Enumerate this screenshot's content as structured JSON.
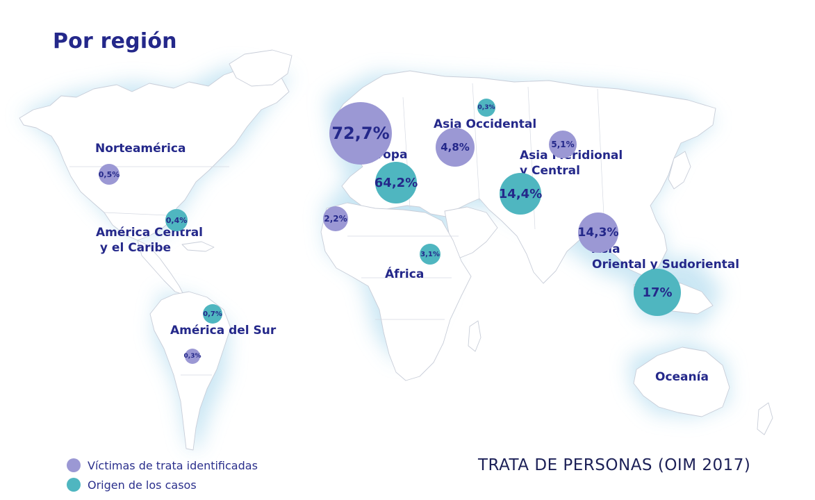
{
  "heading": "Por región",
  "footer_title": "TRATA DE PERSONAS (OIM 2017)",
  "colors": {
    "victims": "#9b98d4",
    "origin": "#4fb6c0",
    "text": "#24288a",
    "land": "#ffffff",
    "glow": "#c5e4f3"
  },
  "legend": [
    {
      "label": "Víctimas de trata identificadas",
      "color": "#9b98d4"
    },
    {
      "label": "Origen de los casos",
      "color": "#4fb6c0"
    }
  ],
  "regions": [
    {
      "id": "norteamerica",
      "lines": [
        "Norteamérica"
      ]
    },
    {
      "id": "america-central",
      "lines": [
        "América Central",
        " y el Caribe"
      ]
    },
    {
      "id": "america-sur",
      "lines": [
        "América del Sur"
      ]
    },
    {
      "id": "europa",
      "lines": [
        "Europa"
      ]
    },
    {
      "id": "asia-occidental",
      "lines": [
        "Asia Occidental"
      ]
    },
    {
      "id": "asia-meridional",
      "lines": [
        "Asia Meridional",
        "y Central"
      ]
    },
    {
      "id": "africa",
      "lines": [
        "África"
      ]
    },
    {
      "id": "asia-oriental",
      "lines": [
        "Asia",
        "Oriental y Sudoriental"
      ]
    },
    {
      "id": "oceania",
      "lines": [
        "Oceanía"
      ]
    }
  ],
  "bubbles": [
    {
      "region": "norteamerica",
      "series": "victims",
      "label": "0,5%",
      "value": 0.5
    },
    {
      "region": "america-central",
      "series": "origin",
      "label": "0,4%",
      "value": 0.4
    },
    {
      "region": "america-sur",
      "series": "origin",
      "label": "0,7%",
      "value": 0.7
    },
    {
      "region": "america-sur",
      "series": "victims",
      "label": "0,3%",
      "value": 0.3
    },
    {
      "region": "europa",
      "series": "victims",
      "label": "72,7%",
      "value": 72.7
    },
    {
      "region": "europa",
      "series": "origin",
      "label": "64,2%",
      "value": 64.2
    },
    {
      "region": "asia-occidental",
      "series": "origin",
      "label": "0,3%",
      "value": 0.3
    },
    {
      "region": "asia-occidental",
      "series": "victims",
      "label": "4,8%",
      "value": 4.8
    },
    {
      "region": "asia-meridional",
      "series": "victims",
      "label": "5,1%",
      "value": 5.1
    },
    {
      "region": "asia-meridional",
      "series": "origin",
      "label": "14,4%",
      "value": 14.4
    },
    {
      "region": "africa",
      "series": "victims",
      "label": "2,2%",
      "value": 2.2
    },
    {
      "region": "africa",
      "series": "origin",
      "label": "3,1%",
      "value": 3.1
    },
    {
      "region": "asia-oriental",
      "series": "victims",
      "label": "14,3%",
      "value": 14.3
    },
    {
      "region": "asia-oriental",
      "series": "origin",
      "label": "17%",
      "value": 17
    }
  ]
}
